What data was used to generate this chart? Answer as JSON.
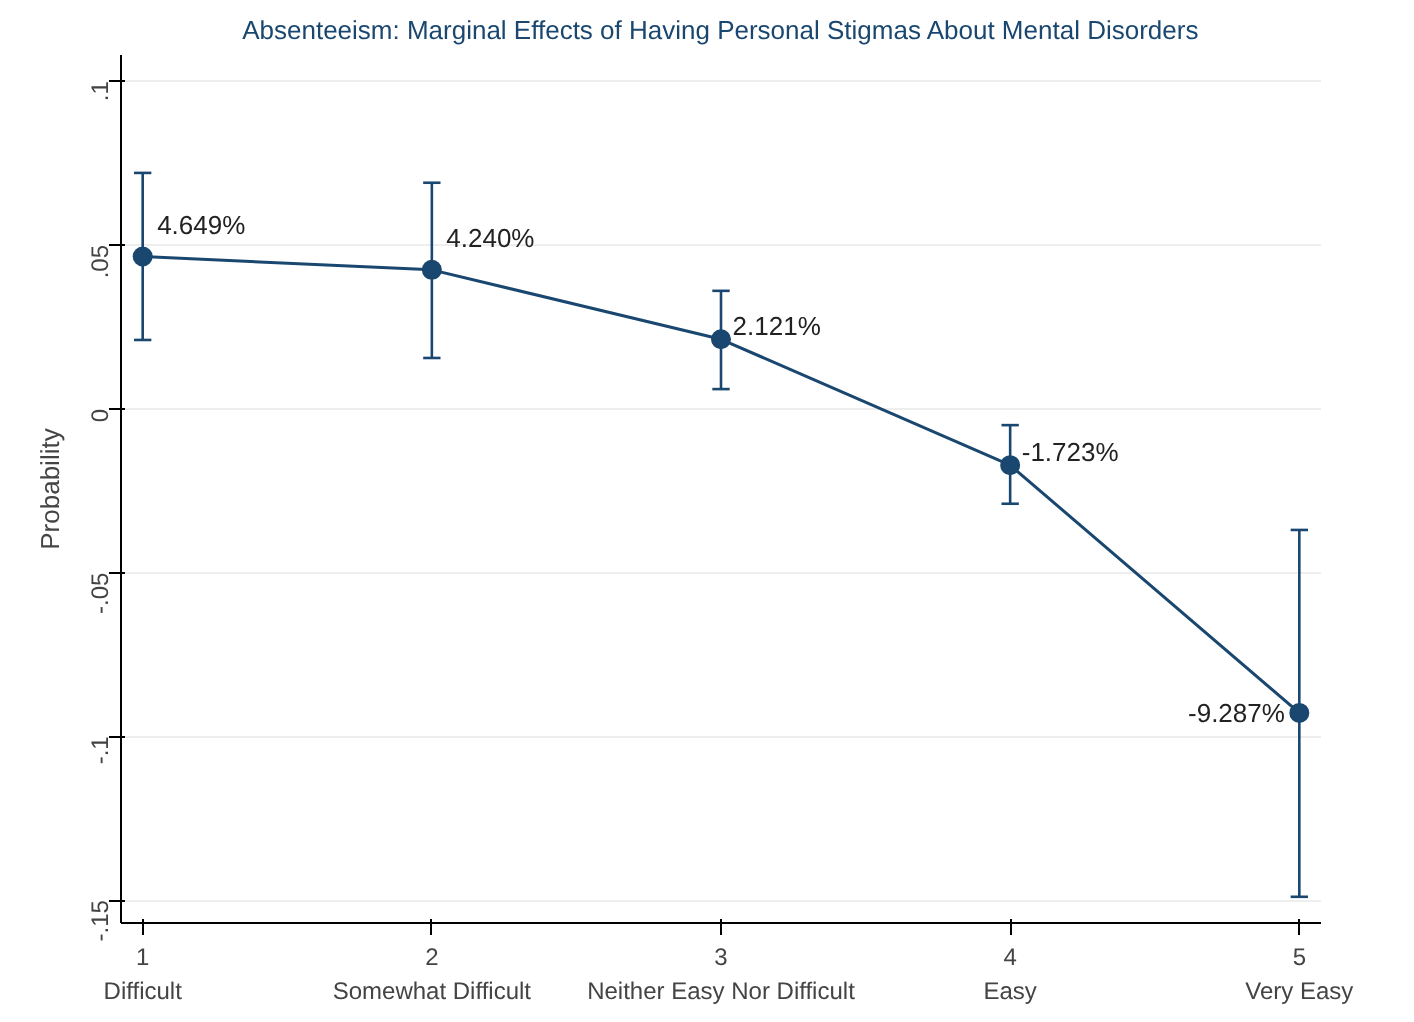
{
  "chart_data": {
    "type": "line",
    "title": "Absenteeism: Marginal Effects of Having Personal Stigmas About Mental Disorders",
    "ylabel": "Probability",
    "x": [
      1,
      2,
      3,
      4,
      5
    ],
    "series": [
      {
        "color": "#1a476f",
        "values": [
          0.04649,
          0.0424,
          0.02121,
          -0.01723,
          -0.09287
        ],
        "errors": [
          [
            0.021,
            0.072
          ],
          [
            0.0155,
            0.069
          ],
          [
            0.006,
            0.036
          ],
          [
            -0.029,
            -0.005
          ],
          [
            -0.149,
            -0.037
          ]
        ],
        "value_labels": [
          "4.649%",
          "4.240%",
          "2.121%",
          "-1.723%",
          "-9.287%"
        ]
      }
    ],
    "xlim": [
      0.925,
      5.075
    ],
    "ylim": [
      -0.157,
      0.108
    ],
    "xticks": [
      {
        "value": 1,
        "label": "1\nDifficult"
      },
      {
        "value": 2,
        "label": "2\nSomewhat Difficult"
      },
      {
        "value": 3,
        "label": "3\nNeither Easy Nor Difficult"
      },
      {
        "value": 4,
        "label": "4\nEasy"
      },
      {
        "value": 5,
        "label": "5\nVery Easy"
      }
    ],
    "yticks": [
      {
        "value": 0.1,
        "label": ".1"
      },
      {
        "value": 0.05,
        "label": ".05"
      },
      0,
      {
        "value": -0.05,
        "label": "-.05"
      },
      {
        "value": -0.1,
        "label": "-.1"
      },
      {
        "value": -0.15,
        "label": "-.15"
      }
    ],
    "grid": "y",
    "marker": "circle",
    "line_style": "solid"
  }
}
